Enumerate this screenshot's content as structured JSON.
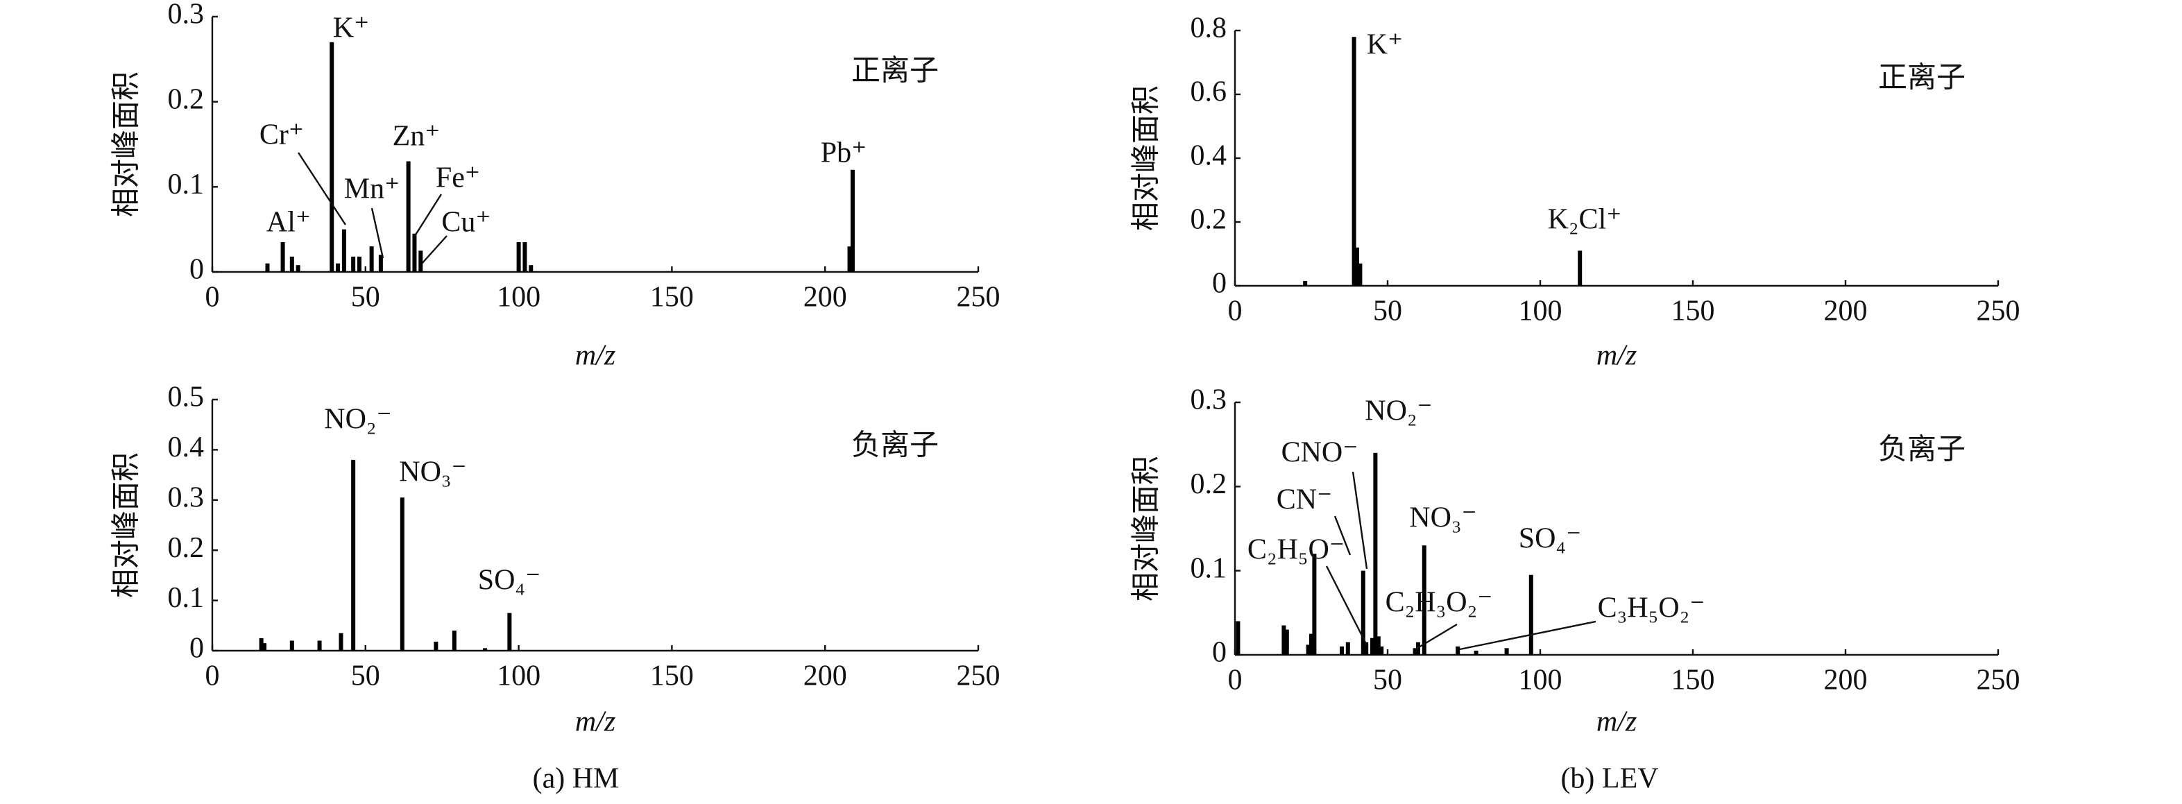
{
  "chart_data": [
    {
      "type": "bar",
      "panel_label": "正离子",
      "xlabel": "m/z",
      "ylabel": "相对峰面积",
      "color": "#000000",
      "x": [
        18,
        23,
        26,
        28,
        39,
        41,
        43,
        46,
        48,
        52,
        55,
        64,
        66,
        68,
        100,
        102,
        104,
        208,
        209
      ],
      "values": [
        0.01,
        0.035,
        0.018,
        0.008,
        0.27,
        0.01,
        0.05,
        0.018,
        0.018,
        0.03,
        0.02,
        0.13,
        0.045,
        0.025,
        0.035,
        0.035,
        0.008,
        0.03,
        0.12
      ],
      "xlim": [
        0,
        250
      ],
      "ylim": [
        0,
        0.3
      ],
      "xticks": [
        0,
        50,
        100,
        150,
        200,
        250
      ],
      "yticks": [
        0,
        0.1,
        0.2,
        0.3
      ],
      "annotations": [
        "Al⁺",
        "K⁺",
        "Cr⁺",
        "Mn⁺",
        "Zn⁺",
        "Fe⁺",
        "Cu⁺",
        "Pb⁺"
      ]
    },
    {
      "type": "bar",
      "panel_label": "负离子",
      "xlabel": "m/z",
      "ylabel": "相对峰面积",
      "color": "#000000",
      "x": [
        16,
        17,
        26,
        35,
        42,
        46,
        62,
        73,
        79,
        89,
        97
      ],
      "values": [
        0.025,
        0.015,
        0.02,
        0.02,
        0.035,
        0.38,
        0.305,
        0.018,
        0.04,
        0.005,
        0.075
      ],
      "xlim": [
        0,
        250
      ],
      "ylim": [
        0,
        0.5
      ],
      "xticks": [
        0,
        50,
        100,
        150,
        200,
        250
      ],
      "yticks": [
        0,
        0.1,
        0.2,
        0.3,
        0.4,
        0.5
      ],
      "annotations": [
        "NO₂⁻",
        "NO₃⁻",
        "SO₄⁻"
      ]
    },
    {
      "type": "bar",
      "panel_label": "正离子",
      "xlabel": "m/z",
      "ylabel": "相对峰面积",
      "color": "#000000",
      "x": [
        23,
        39,
        40,
        41,
        113
      ],
      "values": [
        0.015,
        0.78,
        0.12,
        0.07,
        0.11
      ],
      "xlim": [
        0,
        250
      ],
      "ylim": [
        0,
        0.8
      ],
      "xticks": [
        0,
        50,
        100,
        150,
        200,
        250
      ],
      "yticks": [
        0,
        0.2,
        0.4,
        0.6,
        0.8
      ],
      "annotations": [
        "K⁺",
        "K₂Cl⁺"
      ]
    },
    {
      "type": "bar",
      "panel_label": "负离子",
      "xlabel": "m/z",
      "ylabel": "相对峰面积",
      "color": "#000000",
      "x": [
        1,
        16,
        17,
        24,
        25,
        26,
        35,
        37,
        42,
        43,
        45,
        46,
        47,
        48,
        59,
        60,
        62,
        73,
        79,
        89,
        97
      ],
      "values": [
        0.04,
        0.035,
        0.03,
        0.012,
        0.025,
        0.12,
        0.01,
        0.015,
        0.1,
        0.015,
        0.02,
        0.24,
        0.022,
        0.01,
        0.008,
        0.015,
        0.13,
        0.01,
        0.005,
        0.008,
        0.095
      ],
      "xlim": [
        0,
        250
      ],
      "ylim": [
        0,
        0.3
      ],
      "xticks": [
        0,
        50,
        100,
        150,
        200,
        250
      ],
      "yticks": [
        0,
        0.1,
        0.2,
        0.3
      ],
      "annotations": [
        "NO₂⁻",
        "CNO⁻",
        "CN⁻",
        "C₂H₅O⁻",
        "NO₃⁻",
        "SO₄⁻",
        "C₂H₃O₂⁻",
        "C₃H₅O₂⁻"
      ]
    }
  ],
  "figure": {
    "captions": [
      "(a) HM",
      "(b) LEV"
    ]
  }
}
